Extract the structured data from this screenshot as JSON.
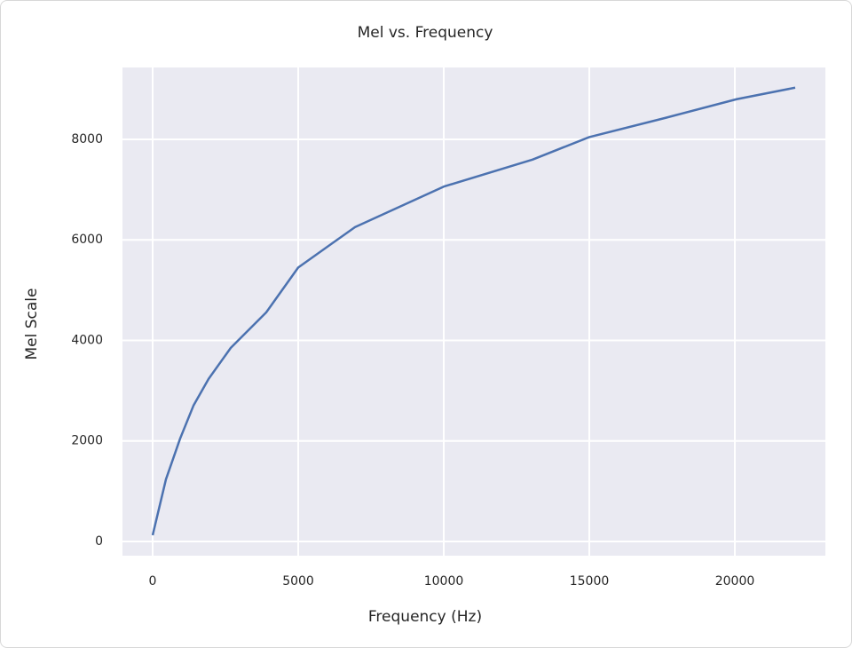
{
  "chart_data": {
    "type": "line",
    "title": "Mel vs. Frequency",
    "x_label": "Frequency (Hz)",
    "y_label": "Mel Scale",
    "x": [
      0,
      457,
      945,
      1402,
      1921,
      2683,
      3902,
      5000,
      6951,
      10000,
      13049,
      15000,
      17622,
      20061,
      22073
    ],
    "series": [
      {
        "name": "Mel",
        "color": "#4c72b0",
        "values": [
          124,
          1237,
          2049,
          2703,
          3233,
          3852,
          4558,
          5450,
          6254,
          7060,
          7597,
          8045,
          8428,
          8799,
          9028
        ]
      }
    ],
    "xlim": [
      -1037,
      23110
    ],
    "ylim": [
      -283,
      9430
    ],
    "xticks": [
      0,
      5000,
      10000,
      15000,
      20000
    ],
    "yticks": [
      0,
      2000,
      4000,
      6000,
      8000
    ],
    "grid": true
  }
}
